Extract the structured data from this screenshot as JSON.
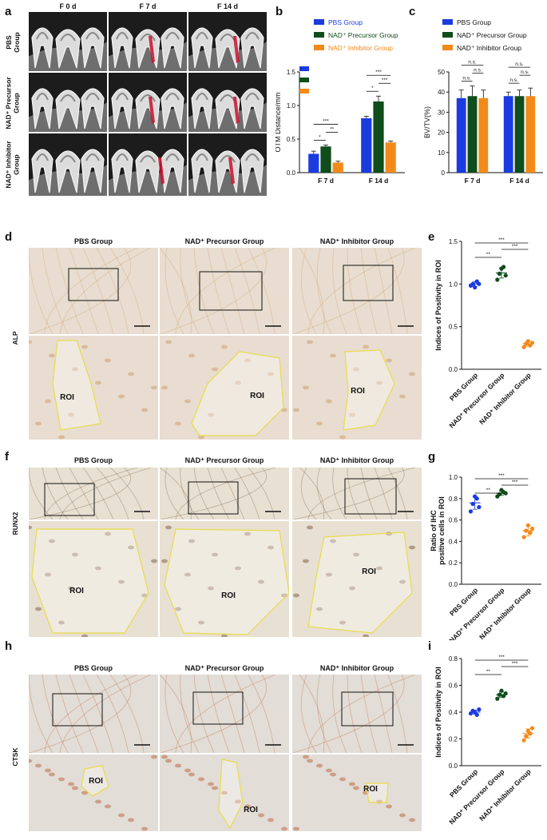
{
  "panels": {
    "a": {
      "label": "a",
      "columns": [
        "F 0 d",
        "F 7 d",
        "F 14 d"
      ],
      "rows": [
        {
          "lines": [
            "PBS",
            "Group"
          ]
        },
        {
          "lines": [
            "NAD⁺ Precursor",
            "Group"
          ]
        },
        {
          "lines": [
            "NAD⁺ Inhibitor",
            "Group"
          ]
        }
      ]
    },
    "d": {
      "label": "d",
      "columns": [
        "PBS Group",
        "NAD⁺ Precursor Group",
        "NAD⁺ Inhibitor Group"
      ],
      "row_label": "ALP",
      "roi": "ROI"
    },
    "f": {
      "label": "f",
      "columns": [
        "PBS Group",
        "NAD⁺ Precursor Group",
        "NAD⁺ Inhibitor Group"
      ],
      "row_label": "RUNX2",
      "roi": "ROI"
    },
    "h": {
      "label": "h",
      "columns": [
        "PBS Group",
        "NAD⁺ Precursor Group",
        "NAD⁺ Inhibitor Group"
      ],
      "row_label": "CTSK",
      "roi": "ROI"
    }
  },
  "colors": {
    "pbs": "#1a3be0",
    "precursor": "#0f4d1a",
    "inhibitor": "#f28a1a",
    "roi": "#e8dc4a",
    "red_mark": "#c8102e"
  },
  "chart_data": [
    {
      "id": "b",
      "label": "b",
      "type": "bar",
      "ylabel": "OTM Distance/mm",
      "categories": [
        "F 7 d",
        "F 14 d"
      ],
      "ylim": [
        0,
        1.5
      ],
      "yticks": [
        "0.0",
        "0.5",
        "1.0",
        "1.5"
      ],
      "series": [
        {
          "name": "PBS Group",
          "values": [
            0.28,
            0.81
          ],
          "err": [
            0.04,
            0.03
          ]
        },
        {
          "name": "NAD⁺ Precursor Group",
          "values": [
            0.39,
            1.06
          ],
          "err": [
            0.02,
            0.08
          ]
        },
        {
          "name": "NAD⁺ Inhibitor Group",
          "values": [
            0.15,
            0.45
          ],
          "err": [
            0.02,
            0.02
          ]
        }
      ],
      "significance": [
        "*",
        "**",
        "***",
        "*",
        "***",
        "***"
      ]
    },
    {
      "id": "c",
      "label": "c",
      "type": "bar",
      "ylabel": "BV/TV(%)",
      "categories": [
        "F 7 d",
        "F 14 d"
      ],
      "ylim": [
        0,
        50
      ],
      "yticks": [
        "0",
        "10",
        "20",
        "30",
        "40",
        "50"
      ],
      "series": [
        {
          "name": "PBS Group",
          "values": [
            37,
            38
          ],
          "err": [
            4,
            2
          ]
        },
        {
          "name": "NAD⁺ Precursor Group",
          "values": [
            38,
            38
          ],
          "err": [
            5,
            3
          ]
        },
        {
          "name": "NAD⁺ Inhibitor Group",
          "values": [
            37,
            38
          ],
          "err": [
            4,
            4
          ]
        }
      ],
      "significance": [
        "n.s.",
        "n.s.",
        "n.s.",
        "n.s.",
        "n.s.",
        "n.s."
      ]
    },
    {
      "id": "e",
      "label": "e",
      "type": "scatter",
      "ylabel": "Indices of Positivity in ROI",
      "categories": [
        "PBS Group",
        "NAD⁺ Precursor Group",
        "NAD⁺ Inhibitor Group"
      ],
      "ylim": [
        0,
        1.5
      ],
      "yticks": [
        "0.0",
        "0.5",
        "1.0",
        "1.5"
      ],
      "points": [
        [
          0.98,
          1.0,
          0.96,
          1.03,
          1.0
        ],
        [
          1.05,
          1.12,
          1.18,
          1.2,
          1.1
        ],
        [
          0.26,
          0.3,
          0.33,
          0.28,
          0.31
        ]
      ],
      "means": [
        1.0,
        1.13,
        0.3
      ],
      "sd": [
        0.03,
        0.06,
        0.03
      ],
      "significance": [
        "**",
        "***",
        "***"
      ]
    },
    {
      "id": "g",
      "label": "g",
      "type": "scatter",
      "ylabel": "Ratio of IHC positive cells in ROI",
      "categories": [
        "PBS Group",
        "NAD⁺ Precursor Group",
        "NAD⁺ Inhibitor Group"
      ],
      "ylim": [
        0,
        1.0
      ],
      "yticks": [
        "0.0",
        "0.2",
        "0.4",
        "0.6",
        "0.8",
        "1.0"
      ],
      "points": [
        [
          0.68,
          0.75,
          0.82,
          0.8,
          0.72
        ],
        [
          0.82,
          0.84,
          0.88,
          0.86,
          0.85
        ],
        [
          0.44,
          0.5,
          0.55,
          0.48,
          0.52
        ]
      ],
      "means": [
        0.76,
        0.85,
        0.5
      ],
      "sd": [
        0.06,
        0.02,
        0.05
      ],
      "significance": [
        "**",
        "***",
        "***"
      ]
    },
    {
      "id": "i",
      "label": "i",
      "type": "scatter",
      "ylabel": "Indices of Positivity in ROI",
      "categories": [
        "PBS Group",
        "NAD⁺ Precursor Group",
        "NAD⁺ Inhibitor Group"
      ],
      "ylim": [
        0,
        0.8
      ],
      "yticks": [
        "0.0",
        "0.2",
        "0.4",
        "0.6",
        "0.8"
      ],
      "points": [
        [
          0.39,
          0.41,
          0.4,
          0.38,
          0.42
        ],
        [
          0.5,
          0.53,
          0.56,
          0.52,
          0.54
        ],
        [
          0.19,
          0.22,
          0.26,
          0.24,
          0.28
        ]
      ],
      "means": [
        0.4,
        0.53,
        0.24
      ],
      "sd": [
        0.015,
        0.02,
        0.035
      ],
      "significance": [
        "**",
        "***",
        "***"
      ]
    }
  ]
}
